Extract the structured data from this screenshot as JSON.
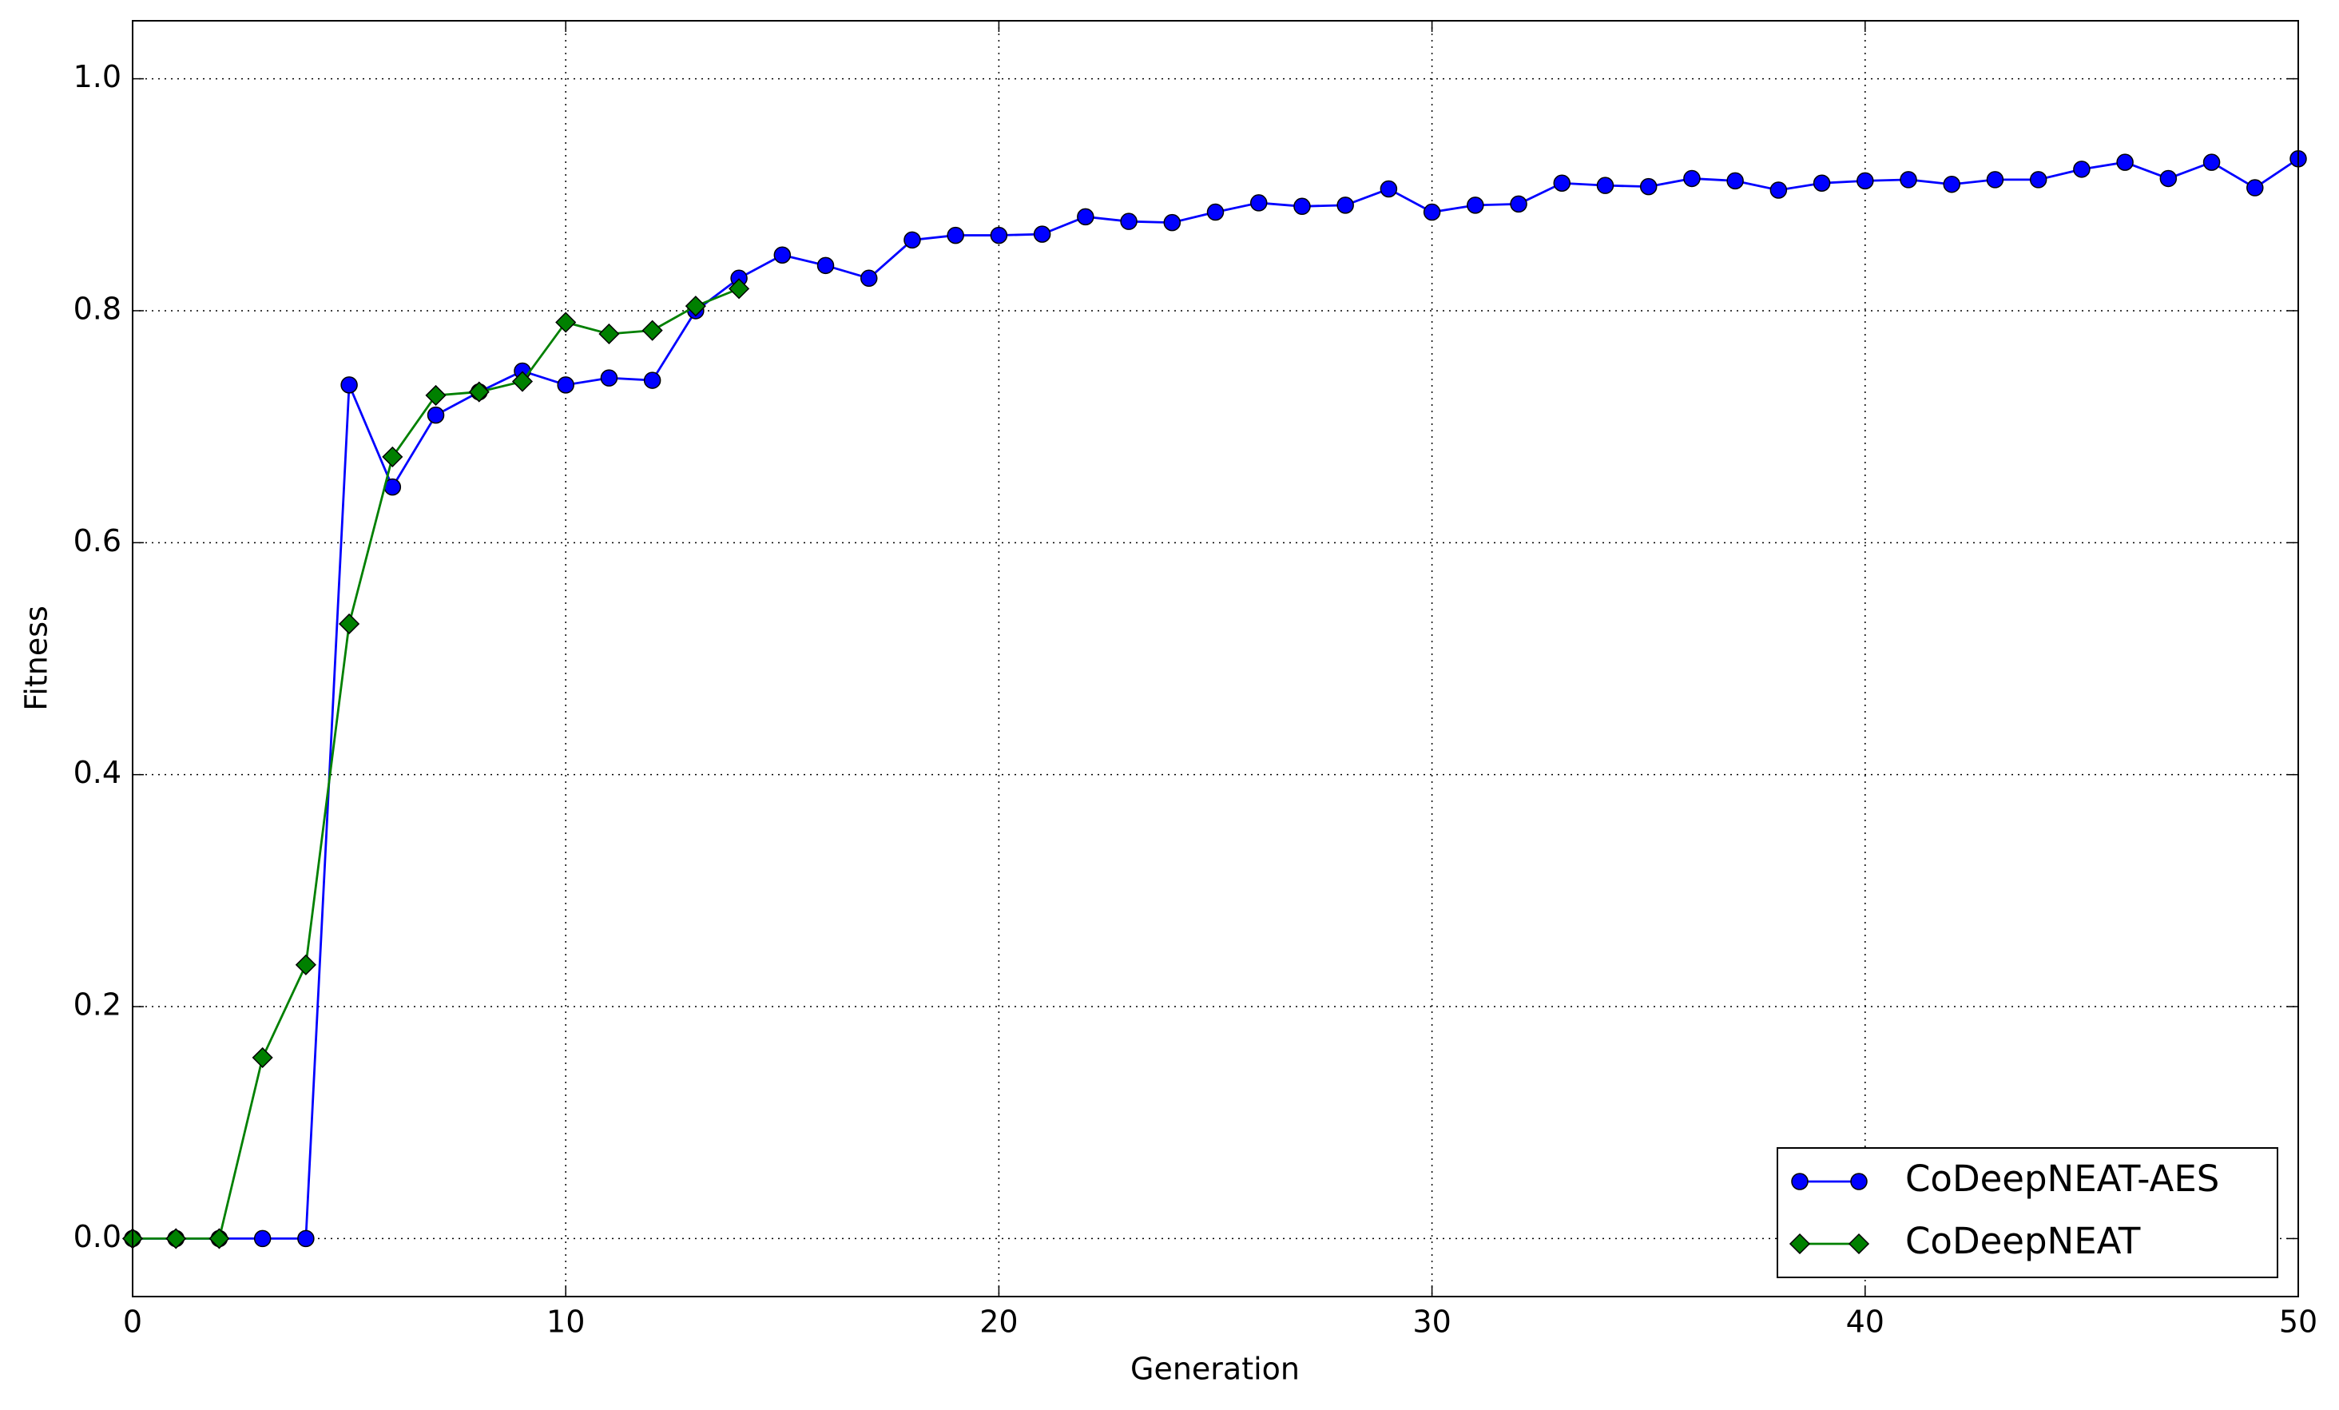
{
  "chart_data": {
    "type": "line",
    "x_label": "Generation",
    "y_label": "Fitness",
    "x": [
      0,
      1,
      2,
      3,
      4,
      5,
      6,
      7,
      8,
      9,
      10,
      11,
      12,
      13,
      14,
      15,
      16,
      17,
      18,
      19,
      20,
      21,
      22,
      23,
      24,
      25,
      26,
      27,
      28,
      29,
      30,
      31,
      32,
      33,
      34,
      35,
      36,
      37,
      38,
      39,
      40,
      41,
      42,
      43,
      44,
      45,
      46,
      47,
      48,
      49,
      50
    ],
    "series": [
      {
        "name": "CoDeepNEAT-AES",
        "color": "#0000ff",
        "marker": "circle",
        "values": [
          0,
          0,
          0,
          0,
          0,
          0.736,
          0.648,
          0.71,
          0.73,
          0.748,
          0.736,
          0.742,
          0.74,
          0.8,
          0.828,
          0.848,
          0.839,
          0.828,
          0.861,
          0.865,
          0.865,
          0.866,
          0.881,
          0.877,
          0.876,
          0.885,
          0.893,
          0.89,
          0.891,
          0.905,
          0.885,
          0.891,
          0.892,
          0.91,
          0.908,
          0.907,
          0.914,
          0.912,
          0.904,
          0.91,
          0.912,
          0.913,
          0.909,
          0.913,
          0.913,
          0.922,
          0.928,
          0.914,
          0.928,
          0.906,
          0.931
        ]
      },
      {
        "name": "CoDeepNEAT",
        "color": "#008000",
        "marker": "diamond",
        "values": [
          0,
          0,
          0,
          0.156,
          0.236,
          0.53,
          0.674,
          0.727,
          0.73,
          0.739,
          0.79,
          0.78,
          0.783,
          0.804,
          0.819,
          null,
          null,
          null,
          null,
          null,
          null,
          null,
          null,
          null,
          null,
          null,
          null,
          null,
          null,
          null,
          null,
          null,
          null,
          null,
          null,
          null,
          null,
          null,
          null,
          null,
          null,
          null,
          null,
          null,
          null,
          null,
          null,
          null,
          null,
          null,
          null
        ]
      }
    ],
    "xlim": [
      0,
      50
    ],
    "xticks": [
      0,
      10,
      20,
      30,
      40,
      50
    ],
    "ylim": [
      -0.05,
      1.05
    ],
    "yticks": [
      {
        "value": 0,
        "label": "0.0"
      },
      0.2,
      0.4,
      0.6,
      0.8,
      {
        "value": 1,
        "label": "1.0"
      }
    ],
    "grid": true,
    "legend": "lower right"
  }
}
